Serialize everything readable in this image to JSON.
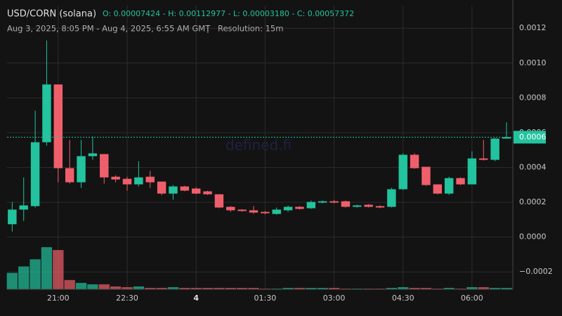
{
  "chart_data": {
    "type": "candlestick",
    "title": "USD/CORN (solana)",
    "ohlc_summary": "O: 0.00007424 - H: 0.00112977 - L: 0.00003180 - C: 0.00057372",
    "subtitle": "Aug 3, 2025, 8:05 PM - Aug 4, 2025, 6:55 AM GMT",
    "separator": "|",
    "resolution": "Resolution: 15m",
    "watermark": "defined.fi",
    "last_price_label": "0.0006",
    "up_color": "#22c39e",
    "down_color": "#ef5f6b",
    "categories": [
      null,
      null,
      null,
      null,
      "21:00",
      null,
      null,
      null,
      null,
      null,
      "22:30",
      null,
      null,
      null,
      null,
      null,
      "4",
      null,
      null,
      null,
      null,
      null,
      "01:30",
      null,
      null,
      null,
      null,
      null,
      "03:00",
      null,
      null,
      null,
      null,
      null,
      "04:30",
      null,
      null,
      null,
      null,
      null,
      "06:00",
      null,
      null,
      null
    ],
    "open": [
      7.4e-05,
      0.000158,
      0.000178,
      0.000545,
      0.000877,
      0.000396,
      0.000315,
      0.000465,
      0.000477,
      0.000347,
      0.000335,
      0.000303,
      0.000347,
      0.000319,
      0.00025,
      0.000291,
      0.000279,
      0.000263,
      0.000246,
      0.000174,
      0.000158,
      0.000154,
      0.000145,
      0.000133,
      0.000154,
      0.000174,
      0.000166,
      0.000198,
      0.000206,
      0.000206,
      0.000174,
      0.000186,
      0.000178,
      0.000174,
      0.000275,
      0.000473,
      0.000404,
      0.000303,
      0.00025,
      0.000339,
      0.000303,
      0.000452,
      0.000444,
      0.000566
    ],
    "high": [
      0.000202,
      0.000343,
      0.000727,
      0.00113,
      0.000877,
      0.000558,
      0.000558,
      0.000578,
      0.000477,
      0.000355,
      0.000347,
      0.000436,
      0.00038,
      0.000319,
      0.000299,
      0.000295,
      0.000287,
      0.000267,
      0.000246,
      0.000178,
      0.00016,
      0.000178,
      0.00015,
      0.00017,
      0.000182,
      0.000178,
      0.00021,
      0.00021,
      0.000214,
      0.00021,
      0.000186,
      0.00019,
      0.000182,
      0.000283,
      0.000481,
      0.000481,
      0.000404,
      0.000303,
      0.000347,
      0.000343,
      0.000493,
      0.000558,
      0.00057,
      0.000659
    ],
    "low": [
      3.2e-05,
      9.3e-05,
      0.00017,
      0.000525,
      0.000315,
      0.000307,
      0.000283,
      0.000444,
      0.000307,
      0.000315,
      0.000267,
      0.000291,
      0.000283,
      0.000242,
      0.000214,
      0.000263,
      0.000246,
      0.000242,
      0.000166,
      0.000145,
      0.000145,
      0.000133,
      0.00013,
      0.000129,
      0.000145,
      0.000158,
      0.000162,
      0.000194,
      0.000194,
      0.00017,
      0.00017,
      0.00017,
      0.000166,
      0.00017,
      0.000271,
      0.000392,
      0.000295,
      0.000246,
      0.000242,
      0.000299,
      0.000303,
      0.00044,
      0.000436,
      0.000566
    ],
    "close": [
      0.000158,
      0.000182,
      0.000545,
      0.000877,
      0.000396,
      0.000315,
      0.000465,
      0.000481,
      0.000343,
      0.000331,
      0.000303,
      0.000343,
      0.000315,
      0.00025,
      0.000291,
      0.000267,
      0.00025,
      0.000246,
      0.00017,
      0.000154,
      0.00015,
      0.000141,
      0.000137,
      0.000158,
      0.000174,
      0.000162,
      0.000202,
      0.000206,
      0.000198,
      0.000174,
      0.000182,
      0.000174,
      0.00017,
      0.000275,
      0.000473,
      0.000396,
      0.000299,
      0.00025,
      0.000339,
      0.000303,
      0.000452,
      0.000444,
      0.000566,
      0.000574
    ],
    "volume": [
      23,
      32,
      42,
      59,
      55,
      13,
      9,
      7,
      7,
      4,
      3,
      4,
      2,
      2,
      3,
      2,
      2,
      2,
      2,
      2,
      2,
      2,
      1,
      1,
      2,
      2,
      2,
      2,
      2,
      1,
      1,
      1,
      1,
      2,
      3,
      2,
      2,
      1,
      2,
      1,
      3,
      3,
      2,
      2
    ],
    "ylim": [
      -0.0003,
      0.00133
    ],
    "yticks": [
      {
        "value": -0.0002,
        "label": "−0.0002"
      },
      {
        "value": 0,
        "label": "0.0000"
      },
      0.0002,
      0.0004,
      0.0006,
      0.0008,
      {
        "value": 0.001,
        "label": "0.0010"
      },
      0.0012
    ],
    "grid": true
  }
}
